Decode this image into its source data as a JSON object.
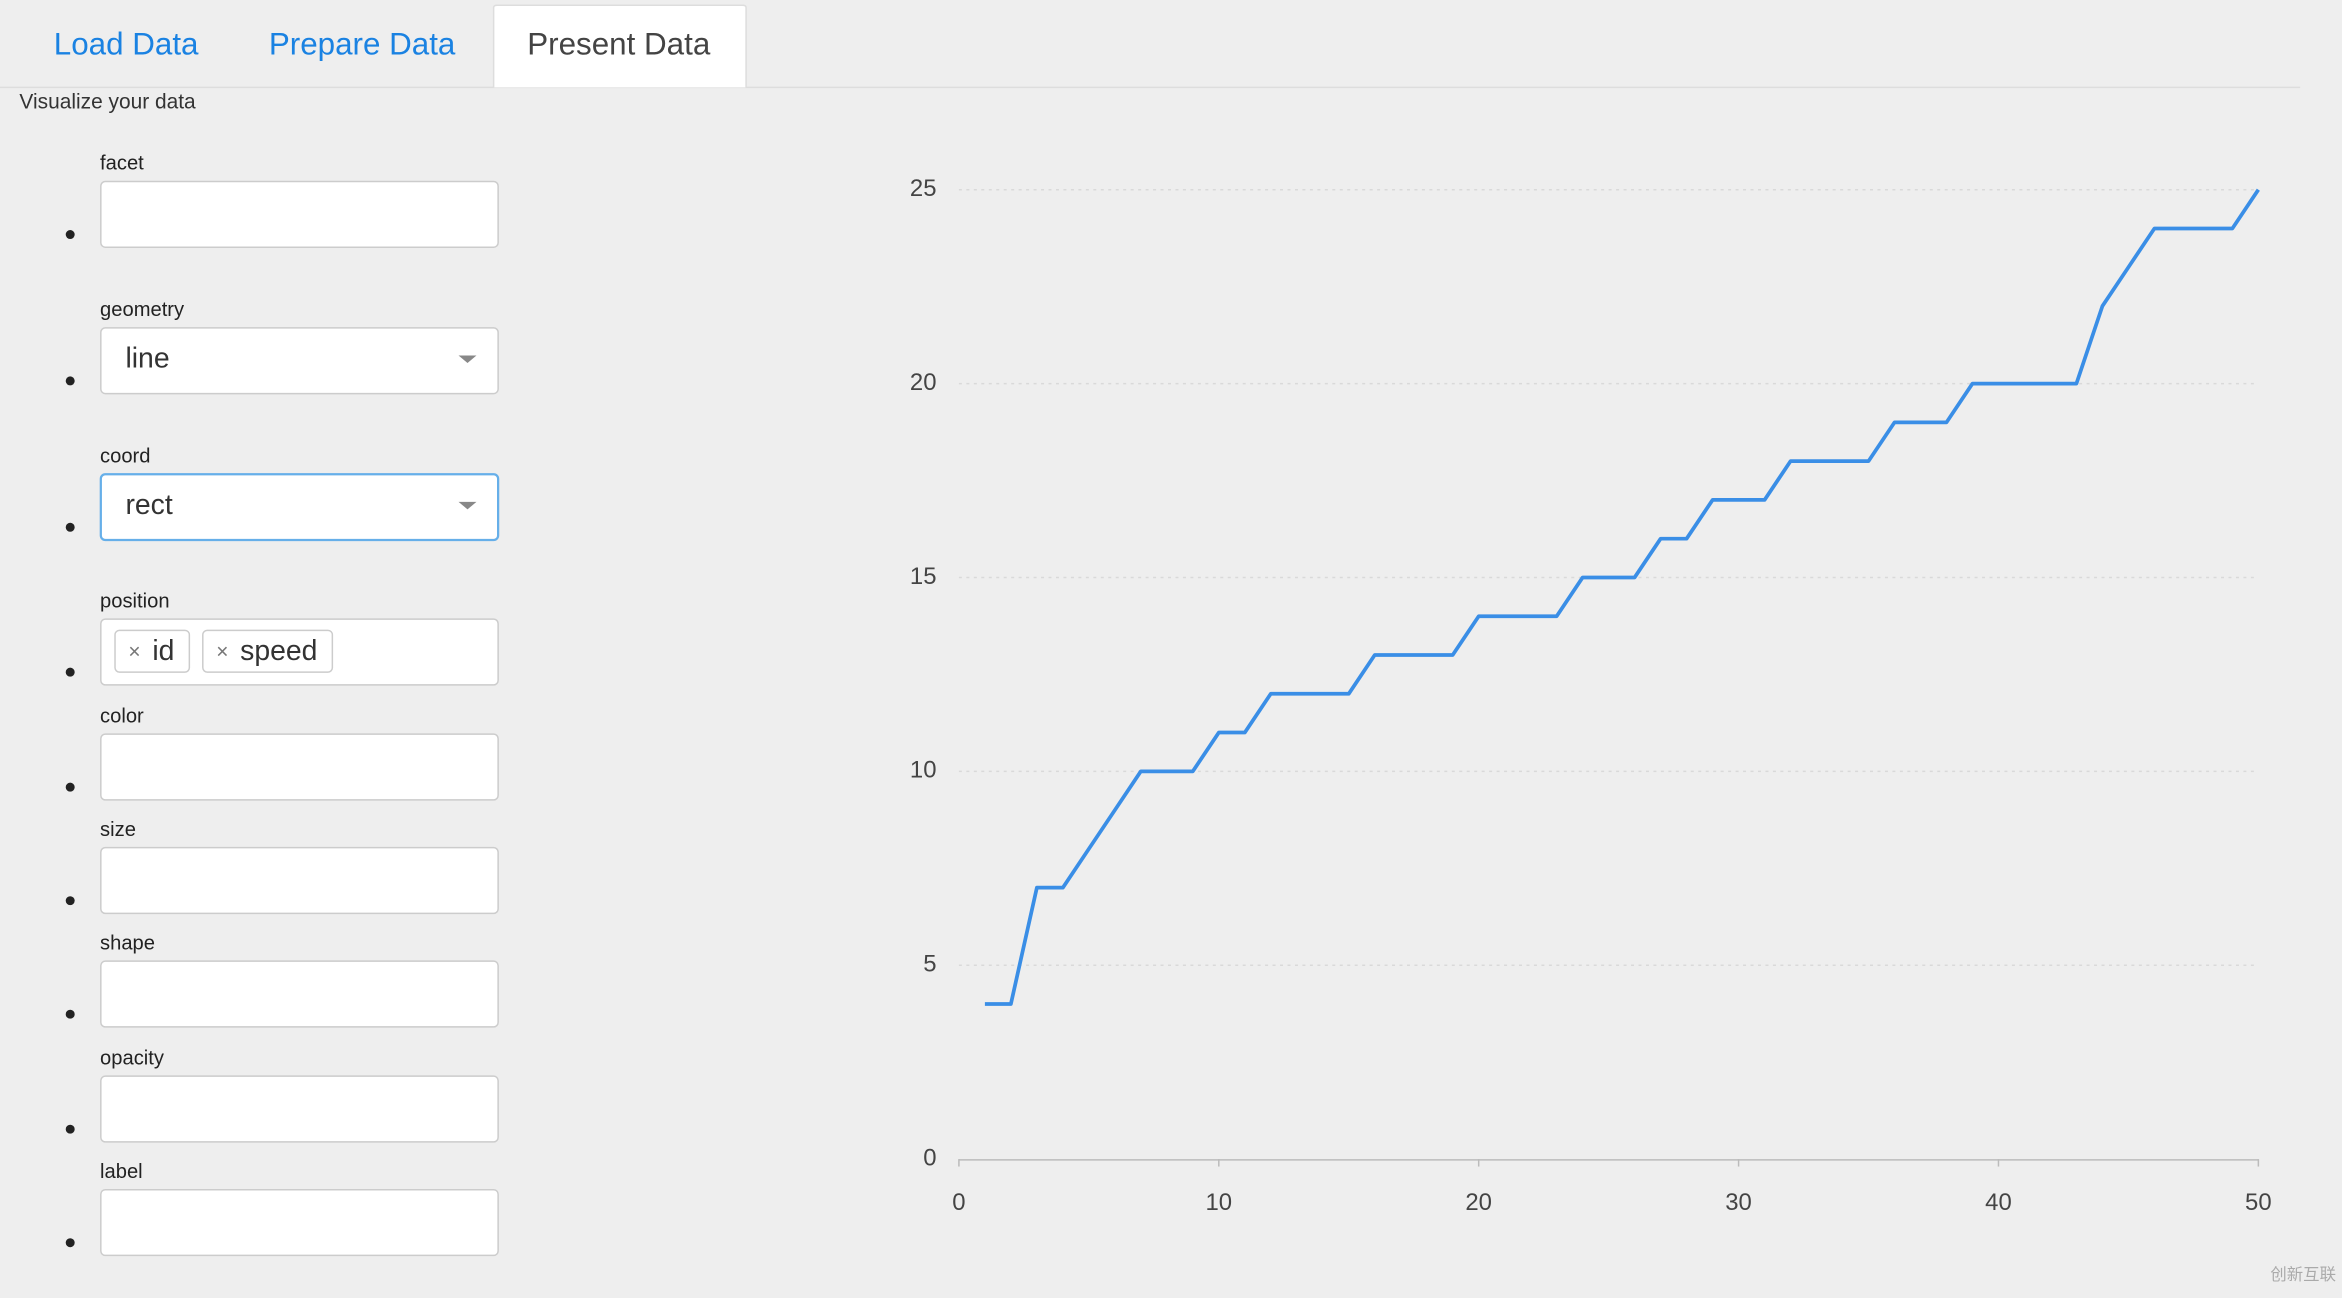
{
  "tabs": [
    "Load Data",
    "Prepare Data",
    "Present Data"
  ],
  "active_tab": 2,
  "heading": "Visualize your data",
  "fields": [
    {
      "label": "facet"
    },
    {
      "label": "geometry",
      "value": "line",
      "control": "select"
    },
    {
      "label": "coord",
      "value": "rect",
      "control": "select",
      "focused": true
    },
    {
      "label": "position",
      "tags": [
        "id",
        "speed"
      ]
    },
    {
      "label": "color"
    },
    {
      "label": "size"
    },
    {
      "label": "shape"
    },
    {
      "label": "opacity"
    },
    {
      "label": "label"
    }
  ],
  "watermark": "创新互联",
  "chart_data": {
    "type": "line",
    "x": [
      1,
      2,
      3,
      4,
      5,
      6,
      7,
      8,
      9,
      10,
      11,
      12,
      13,
      14,
      15,
      16,
      17,
      18,
      19,
      20,
      21,
      22,
      23,
      24,
      25,
      26,
      27,
      28,
      29,
      30,
      31,
      32,
      33,
      34,
      35,
      36,
      37,
      38,
      39,
      40,
      41,
      42,
      43,
      44,
      45,
      46,
      47,
      48,
      49,
      50
    ],
    "series": [
      {
        "color": "#3a8ee6",
        "values": [
          4,
          4,
          7,
          7,
          8,
          9,
          10,
          10,
          10,
          11,
          11,
          12,
          12,
          12,
          12,
          13,
          13,
          13,
          13,
          14,
          14,
          14,
          14,
          15,
          15,
          15,
          16,
          16,
          17,
          17,
          17,
          18,
          18,
          18,
          18,
          19,
          19,
          19,
          20,
          20,
          20,
          20,
          20,
          22,
          23,
          24,
          24,
          24,
          24,
          25
        ]
      }
    ],
    "xlim": [
      0,
      50
    ],
    "ylim": [
      0,
      25
    ],
    "xticks": [
      0,
      10,
      20,
      30,
      40,
      50
    ],
    "yticks": [
      0,
      5,
      10,
      15,
      20,
      25
    ],
    "grid": true
  }
}
